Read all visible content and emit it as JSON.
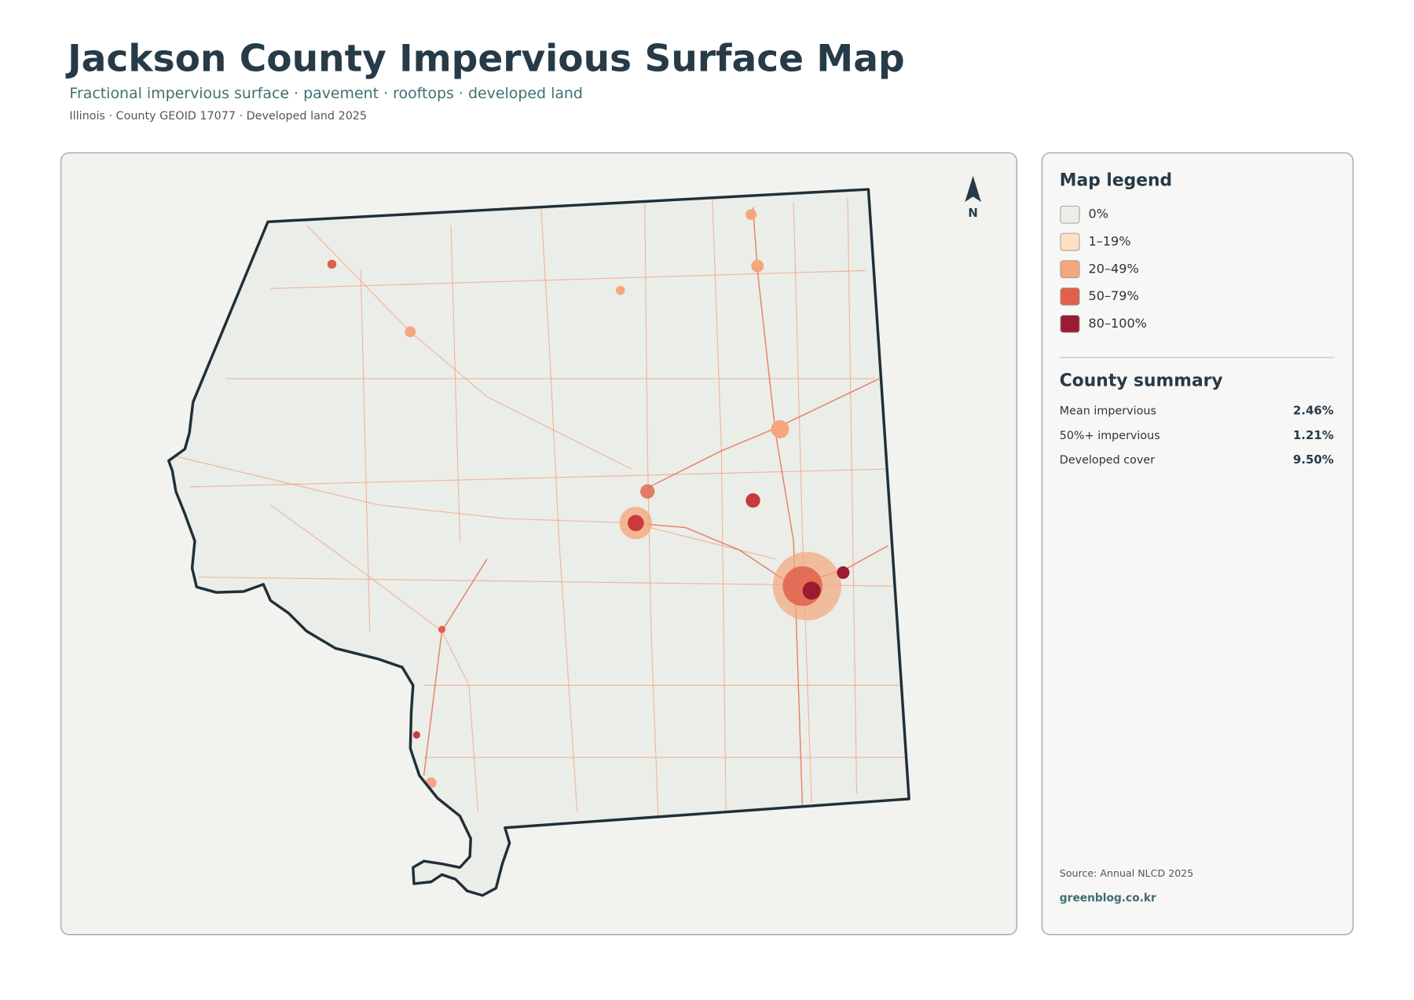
{
  "header": {
    "title": "Jackson County Impervious Surface Map",
    "subtitle": "Fractional impervious surface · pavement · rooftops · developed land",
    "meta": "Illinois · County GEOID 17077 · Developed land 2025"
  },
  "map": {
    "north_label": "N"
  },
  "legend": {
    "title": "Map legend",
    "items": [
      {
        "label": "0%",
        "color": "#ededea"
      },
      {
        "label": "1–19%",
        "color": "#fde0c2"
      },
      {
        "label": "20–49%",
        "color": "#f4a77c"
      },
      {
        "label": "50–79%",
        "color": "#e0604b"
      },
      {
        "label": "80–100%",
        "color": "#9b1c31"
      }
    ]
  },
  "summary": {
    "title": "County summary",
    "rows": [
      {
        "label": "Mean impervious",
        "value": "2.46%"
      },
      {
        "label": "50%+ impervious",
        "value": "1.21%"
      },
      {
        "label": "Developed cover",
        "value": "9.50%"
      }
    ]
  },
  "footer": {
    "source": "Source: Annual NLCD 2025",
    "credit": "greenblog.co.kr"
  }
}
